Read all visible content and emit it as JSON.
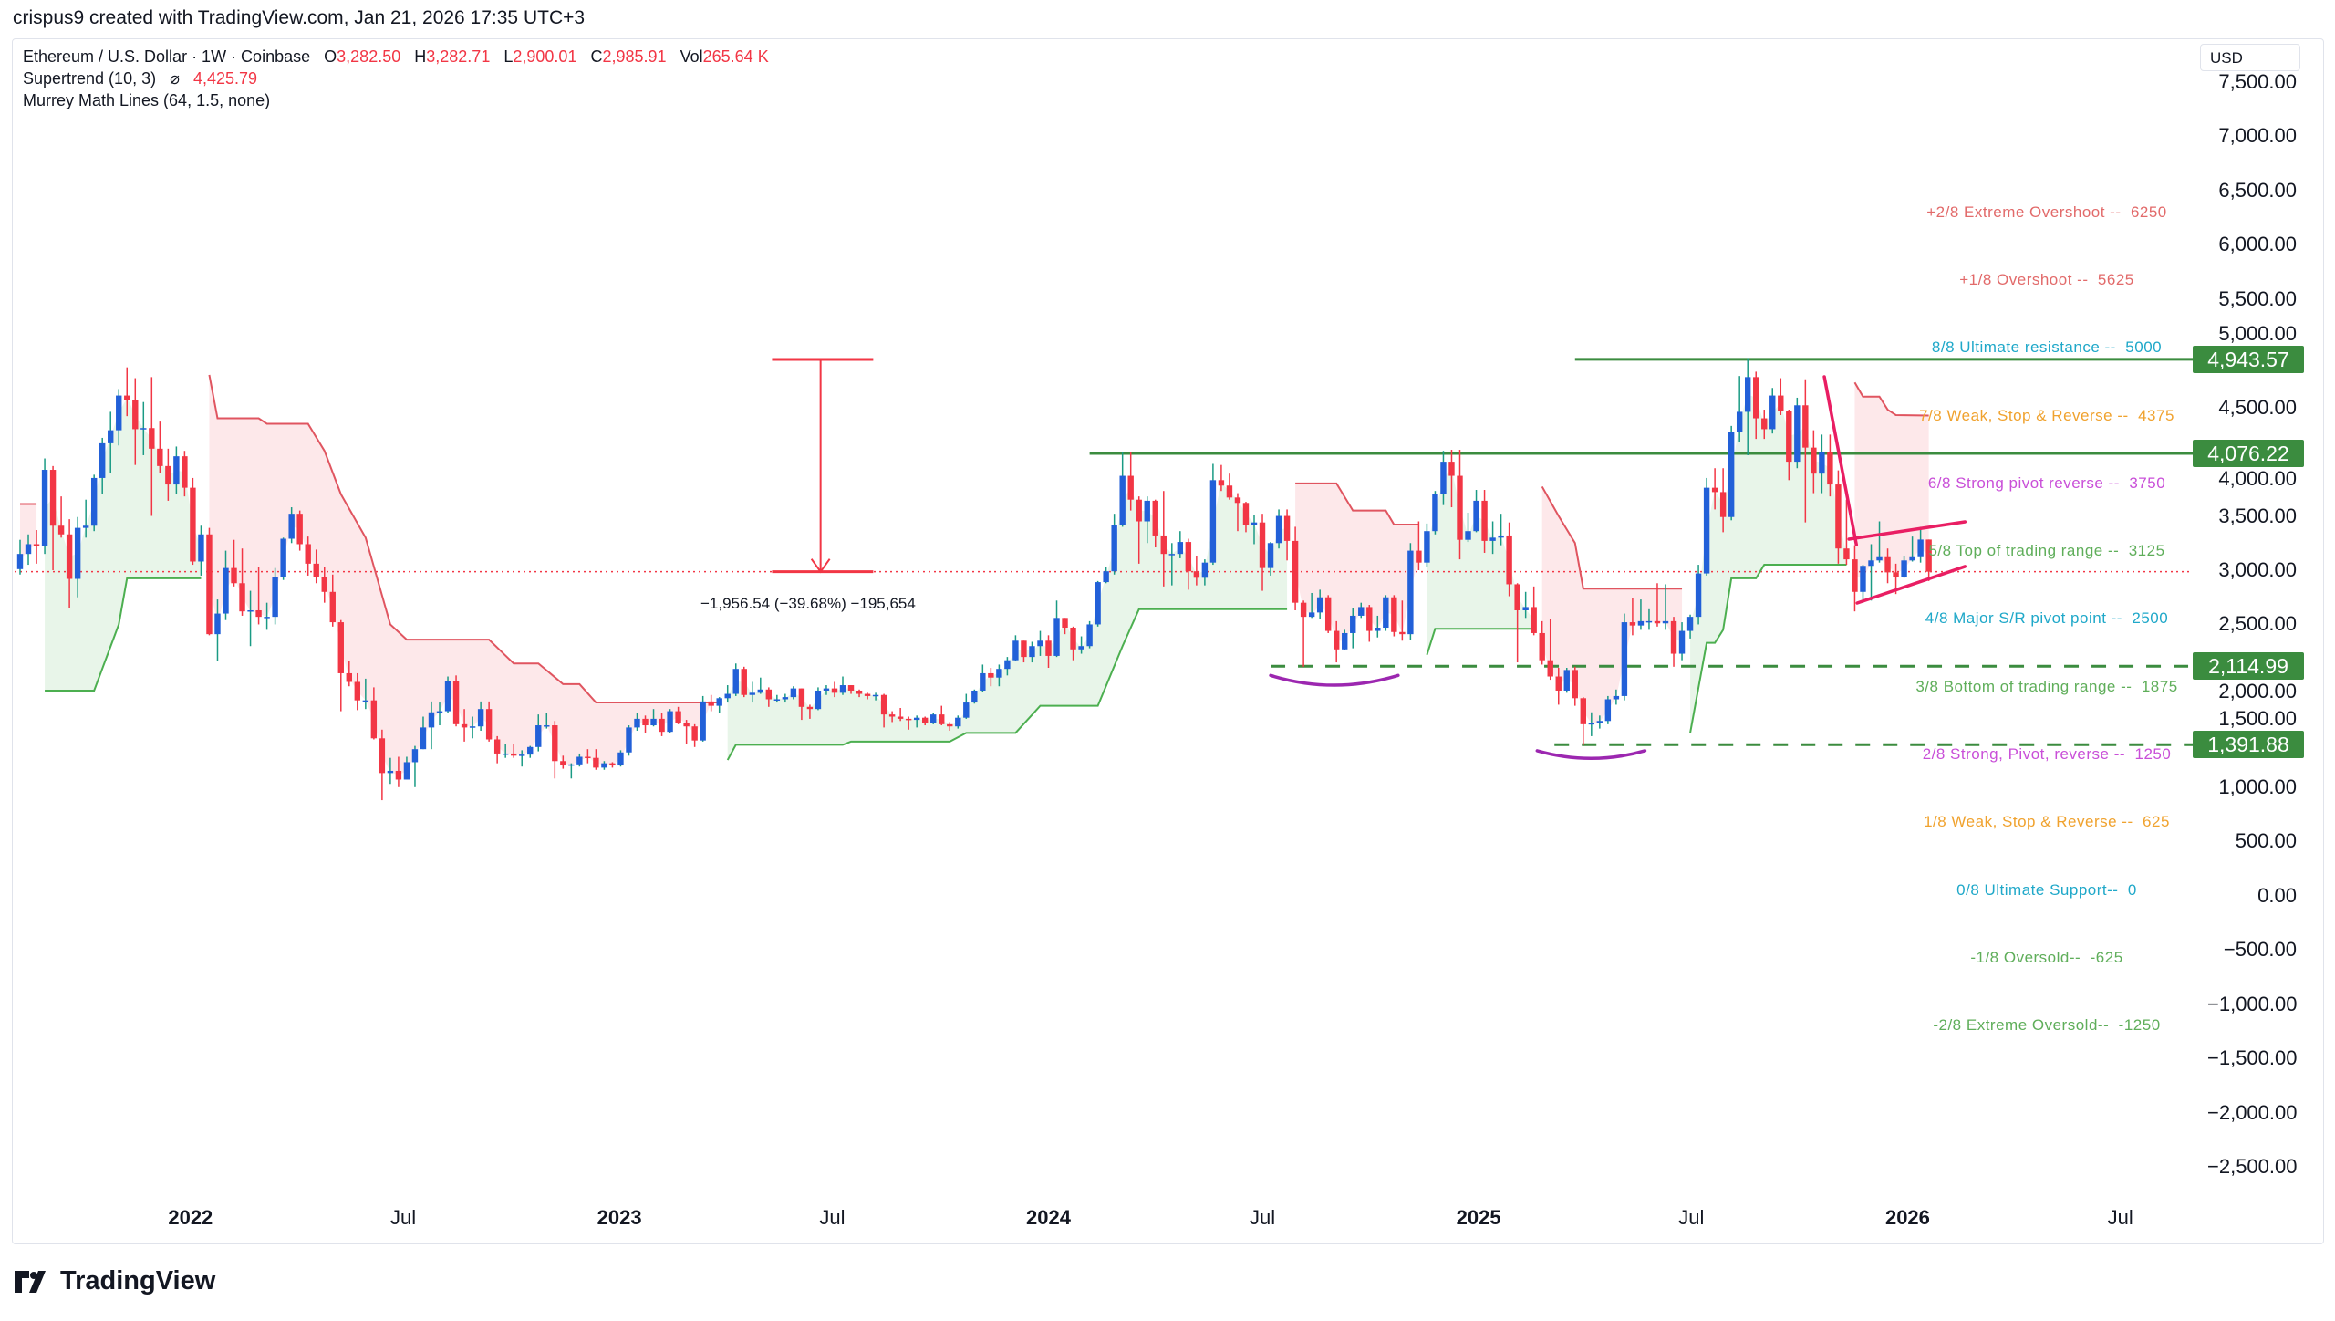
{
  "attribution": "crispus9 created with TradingView.com, Jan 21, 2026 17:35 UTC+3",
  "legend": {
    "symbol": "Ethereum / U.S. Dollar · 1W · Coinbase",
    "o_label": "O",
    "o_value": "3,282.50",
    "h_label": "H",
    "h_value": "3,282.71",
    "l_label": "L",
    "l_value": "2,900.01",
    "c_label": "C",
    "c_value": "2,985.91",
    "vol_label": "Vol",
    "vol_value": "265.64 K",
    "supertrend": "Supertrend (10, 3)",
    "supertrend_symbol": "⌀",
    "supertrend_value": "4,425.79",
    "murrey": "Murrey Math Lines (64, 1.5, none)"
  },
  "currency": "USD",
  "brand": "TradingView",
  "colors": {
    "up_body": "#2260d8",
    "up_wick": "#1a9a84",
    "down": "#f23645",
    "supertrend_up": "#4caf50",
    "supertrend_down": "#e05560",
    "up_fill": "#e8f5e9",
    "down_fill": "#fde8ea",
    "level_line": "#3b8c3f",
    "trendline": "#e91e63",
    "arc": "#9c27b0",
    "measure": "#f23645"
  },
  "chart_data": {
    "type": "candlestick",
    "interval": "1W",
    "first_bar_date": "2021-08-09",
    "first_open": 3010,
    "close": [
      3150,
      3240,
      3225,
      3925,
      3410,
      3330,
      2920,
      3390,
      3410,
      3850,
      4170,
      4290,
      4610,
      4570,
      4300,
      4310,
      4120,
      3960,
      3790,
      4050,
      3760,
      3080,
      3330,
      2410,
      2600,
      3020,
      2880,
      2620,
      2630,
      2570,
      2570,
      2940,
      3290,
      3520,
      3240,
      3060,
      2940,
      2800,
      2520,
      2050,
      1970,
      1800,
      1800,
      1450,
      1130,
      1150,
      1070,
      1230,
      1350,
      1550,
      1690,
      1700,
      1980,
      1580,
      1550,
      1560,
      1720,
      1440,
      1310,
      1310,
      1290,
      1300,
      1370,
      1570,
      1570,
      1240,
      1200,
      1210,
      1280,
      1270,
      1180,
      1220,
      1200,
      1320,
      1550,
      1630,
      1570,
      1630,
      1510,
      1700,
      1590,
      1560,
      1430,
      1790,
      1750,
      1820,
      1860,
      2090,
      1850,
      1870,
      1900,
      1810,
      1810,
      1830,
      1910,
      1740,
      1720,
      1890,
      1910,
      1870,
      1940,
      1890,
      1860,
      1840,
      1850,
      1670,
      1650,
      1630,
      1620,
      1640,
      1590,
      1670,
      1580,
      1560,
      1640,
      1780,
      1890,
      2050,
      2010,
      2090,
      2170,
      2350,
      2200,
      2300,
      2350,
      2210,
      2560,
      2470,
      2270,
      2300,
      2500,
      2890,
      2990,
      3420,
      3870,
      3650,
      3450,
      3640,
      3320,
      3150,
      3150,
      3260,
      2990,
      2930,
      3070,
      3830,
      3780,
      3670,
      3620,
      3420,
      3440,
      3020,
      3250,
      3500,
      3270,
      2700,
      2570,
      2610,
      2750,
      2440,
      2270,
      2420,
      2580,
      2660,
      2440,
      2470,
      2750,
      2430,
      2410,
      3180,
      3070,
      3360,
      3700,
      4000,
      3870,
      3280,
      3360,
      3640,
      3270,
      3300,
      3320,
      2870,
      2630,
      2660,
      2420,
      2170,
      2020,
      1890,
      2080,
      1820,
      1580,
      1590,
      1610,
      1810,
      1840,
      2520,
      2490,
      2530,
      2530,
      2510,
      2530,
      2230,
      2440,
      2570,
      2970,
      3760,
      3720,
      3490,
      4270,
      4460,
      4780,
      4400,
      4300,
      4610,
      4470,
      4000,
      4520,
      4130,
      3890,
      4090,
      3790,
      3200,
      3100,
      2800,
      3040,
      3090,
      3120,
      2980,
      2940,
      3090,
      3120,
      3282.5,
      2985.91
    ],
    "high": [
      3280,
      3330,
      3370,
      4030,
      3960,
      3680,
      3470,
      3490,
      3650,
      3880,
      4220,
      4460,
      4670,
      4870,
      4770,
      4550,
      4780,
      4370,
      4120,
      4140,
      4100,
      3850,
      3410,
      3390,
      2730,
      3180,
      3280,
      3200,
      2810,
      3030,
      2700,
      3020,
      3300,
      3580,
      3550,
      3310,
      3190,
      3030,
      2960,
      2540,
      2160,
      2050,
      2000,
      1920,
      1530,
      1270,
      1280,
      1280,
      1380,
      1650,
      1790,
      1780,
      2020,
      2030,
      1720,
      1650,
      1790,
      1790,
      1470,
      1400,
      1400,
      1340,
      1380,
      1670,
      1680,
      1610,
      1290,
      1220,
      1310,
      1350,
      1350,
      1240,
      1230,
      1340,
      1570,
      1680,
      1660,
      1720,
      1680,
      1720,
      1740,
      1620,
      1580,
      1840,
      1850,
      1830,
      1940,
      2140,
      2110,
      1970,
      2010,
      1920,
      1850,
      1860,
      1930,
      1910,
      1760,
      1920,
      1940,
      1970,
      2020,
      1940,
      1900,
      1870,
      1870,
      1860,
      1700,
      1730,
      1650,
      1660,
      1650,
      1680,
      1750,
      1600,
      1660,
      1860,
      1900,
      2130,
      2100,
      2130,
      2200,
      2400,
      2350,
      2340,
      2440,
      2400,
      2720,
      2560,
      2480,
      2390,
      2530,
      2900,
      3030,
      3520,
      4090,
      4090,
      3680,
      3680,
      3650,
      3730,
      3250,
      3360,
      3290,
      3130,
      3100,
      3980,
      3970,
      3890,
      3710,
      3630,
      3510,
      3520,
      3260,
      3560,
      3560,
      3400,
      2720,
      2790,
      2820,
      2770,
      2530,
      2450,
      2650,
      2700,
      2680,
      2580,
      2770,
      2770,
      2720,
      3250,
      3450,
      3430,
      3730,
      4100,
      4110,
      4110,
      3530,
      3740,
      3740,
      3450,
      3520,
      3440,
      2880,
      2800,
      2850,
      2530,
      2550,
      2100,
      2100,
      2110,
      1830,
      1690,
      1660,
      1840,
      1900,
      2600,
      2740,
      2730,
      2640,
      2880,
      2870,
      2570,
      2520,
      2590,
      3050,
      3850,
      3940,
      3940,
      4330,
      4790,
      4955,
      4830,
      4480,
      4680,
      4770,
      4480,
      4590,
      4760,
      4290,
      4250,
      4250,
      3920,
      3650,
      3230,
      3050,
      3240,
      3450,
      3200,
      3060,
      3130,
      3310,
      3400,
      3282.71
    ],
    "low": [
      2960,
      3050,
      3060,
      3150,
      3000,
      3300,
      2650,
      2750,
      3300,
      3360,
      3700,
      3900,
      4150,
      4420,
      3970,
      4060,
      3500,
      3900,
      3640,
      3700,
      3680,
      3050,
      2950,
      2400,
      2160,
      2540,
      2850,
      2580,
      2300,
      2500,
      2450,
      2500,
      2910,
      3250,
      3180,
      2950,
      2880,
      2700,
      2480,
      1700,
      1930,
      1710,
      1720,
      1440,
      880,
      1030,
      1000,
      1080,
      1000,
      1350,
      1350,
      1570,
      1680,
      1560,
      1420,
      1450,
      1520,
      1420,
      1220,
      1270,
      1270,
      1190,
      1270,
      1330,
      1540,
      1080,
      1170,
      1080,
      1190,
      1220,
      1160,
      1160,
      1180,
      1190,
      1290,
      1520,
      1500,
      1560,
      1470,
      1500,
      1580,
      1400,
      1370,
      1420,
      1700,
      1680,
      1780,
      1840,
      1830,
      1780,
      1860,
      1740,
      1780,
      1780,
      1810,
      1620,
      1630,
      1710,
      1850,
      1830,
      1850,
      1860,
      1830,
      1810,
      1800,
      1550,
      1600,
      1610,
      1530,
      1550,
      1570,
      1580,
      1570,
      1520,
      1540,
      1630,
      1770,
      1880,
      1930,
      1930,
      2030,
      2160,
      2150,
      2150,
      2210,
      2100,
      2200,
      2410,
      2170,
      2230,
      2280,
      2480,
      2880,
      2960,
      3400,
      3550,
      3060,
      3250,
      3210,
      2850,
      2860,
      3110,
      2820,
      2860,
      2860,
      3050,
      3730,
      3650,
      3360,
      3350,
      3240,
      2810,
      2950,
      3200,
      3090,
      2630,
      2110,
      2560,
      2550,
      2420,
      2150,
      2260,
      2280,
      2560,
      2340,
      2380,
      2440,
      2390,
      2350,
      2360,
      3000,
      3030,
      3330,
      3600,
      3580,
      3100,
      3260,
      3350,
      3160,
      3150,
      3230,
      2760,
      2150,
      2560,
      2400,
      2130,
      1990,
      1760,
      1870,
      1750,
      1385,
      1470,
      1540,
      1580,
      1760,
      1800,
      2400,
      2450,
      2450,
      2480,
      2450,
      2110,
      2170,
      2370,
      2500,
      2950,
      3560,
      3350,
      3460,
      4180,
      4060,
      4210,
      4210,
      4260,
      4430,
      3830,
      3940,
      3440,
      3710,
      3710,
      3680,
      3060,
      3050,
      2620,
      2700,
      2720,
      3070,
      2880,
      2780,
      2930,
      3080,
      3070,
      2900.01
    ],
    "last_price": 2985.91,
    "supertrend": [
      {
        "trend": "down",
        "points": [
          [
            0,
            3610
          ],
          [
            2,
            3610
          ]
        ]
      },
      {
        "trend": "up",
        "points": [
          [
            3,
            1890
          ],
          [
            9,
            1890
          ],
          [
            12,
            2500
          ],
          [
            13,
            2925
          ],
          [
            22,
            2925
          ]
        ]
      },
      {
        "trend": "down",
        "points": [
          [
            23,
            4800
          ],
          [
            24,
            4400
          ],
          [
            29,
            4400
          ],
          [
            30,
            4350
          ],
          [
            35,
            4350
          ],
          [
            37,
            4100
          ],
          [
            39,
            3700
          ],
          [
            42,
            3300
          ],
          [
            45,
            2500
          ],
          [
            47,
            2360
          ],
          [
            57,
            2360
          ],
          [
            60,
            2140
          ],
          [
            63,
            2140
          ],
          [
            66,
            1950
          ],
          [
            68,
            1950
          ],
          [
            70,
            1780
          ],
          [
            85,
            1780
          ]
        ]
      },
      {
        "trend": "up",
        "points": [
          [
            86,
            1250
          ],
          [
            87,
            1390
          ],
          [
            100,
            1390
          ],
          [
            101,
            1420
          ],
          [
            113,
            1420
          ],
          [
            115,
            1500
          ],
          [
            121,
            1500
          ],
          [
            124,
            1750
          ],
          [
            131,
            1750
          ],
          [
            134,
            2300
          ],
          [
            136,
            2640
          ],
          [
            154,
            2640
          ]
        ]
      },
      {
        "trend": "down",
        "points": [
          [
            155,
            3800
          ],
          [
            160,
            3800
          ],
          [
            162,
            3550
          ],
          [
            166,
            3550
          ],
          [
            167,
            3420
          ],
          [
            170,
            3420
          ]
        ]
      },
      {
        "trend": "up",
        "points": [
          [
            171,
            2220
          ],
          [
            172,
            2460
          ],
          [
            184,
            2460
          ]
        ]
      },
      {
        "trend": "down",
        "points": [
          [
            185,
            3770
          ],
          [
            187,
            3500
          ],
          [
            189,
            3250
          ],
          [
            190,
            2830
          ],
          [
            202,
            2830
          ]
        ]
      },
      {
        "trend": "up",
        "points": [
          [
            203,
            1500
          ],
          [
            205,
            2330
          ],
          [
            206,
            2330
          ],
          [
            207,
            2450
          ],
          [
            208,
            2925
          ],
          [
            211,
            2925
          ],
          [
            212,
            3050
          ],
          [
            222,
            3050
          ]
        ]
      },
      {
        "trend": "down",
        "points": [
          [
            223,
            4730
          ],
          [
            224,
            4600
          ],
          [
            226,
            4600
          ],
          [
            227,
            4480
          ],
          [
            228,
            4430
          ],
          [
            232,
            4425.79
          ]
        ]
      }
    ],
    "murrey_levels": [
      {
        "label": "+2/8 Extreme Overshoot --  6250",
        "value": 6250,
        "color": "#e26a6a"
      },
      {
        "label": "+1/8 Overshoot --  5625",
        "value": 5625,
        "color": "#e26a6a"
      },
      {
        "label": "8/8 Ultimate resistance --  5000",
        "value": 5000,
        "color": "#1fa8c9"
      },
      {
        "label": "7/8 Weak, Stop & Reverse --  4375",
        "value": 4375,
        "color": "#f0a22e"
      },
      {
        "label": "6/8 Strong pivot reverse --  3750",
        "value": 3750,
        "color": "#c94fd8"
      },
      {
        "label": "5/8 Top of trading range --  3125",
        "value": 3125,
        "color": "#5fae5a"
      },
      {
        "label": "4/8 Major S/R pivot point --  2500",
        "value": 2500,
        "color": "#1fa8c9"
      },
      {
        "label": "3/8 Bottom of trading range --  1875",
        "value": 1875,
        "color": "#5fae5a"
      },
      {
        "label": "2/8 Strong, Pivot, reverse --  1250",
        "value": 1250,
        "color": "#c94fd8"
      },
      {
        "label": "1/8 Weak, Stop & Reverse --  625",
        "value": 625,
        "color": "#f0a22e"
      },
      {
        "label": "0/8 Ultimate Support--  0",
        "value": 0,
        "color": "#1fa8c9"
      },
      {
        "label": "-1/8 Oversold--  -625",
        "value": -625,
        "color": "#5fae5a"
      },
      {
        "label": "-2/8 Extreme Oversold--  -1250",
        "value": -1250,
        "color": "#5fae5a"
      }
    ],
    "horizontal_levels": [
      {
        "label": "4,943.57",
        "value": 4943.57,
        "style": "solid",
        "from_bar": 189
      },
      {
        "label": "4,076.22",
        "value": 4076.22,
        "style": "solid",
        "from_bar": 130
      },
      {
        "label": "2,114.99",
        "value": 2114.99,
        "style": "dashed",
        "from_bar": 152
      },
      {
        "label": "1,391.88",
        "value": 1391.88,
        "style": "dashed",
        "from_bar": 186.5
      }
    ],
    "trendlines": [
      {
        "name": "descending-trendline",
        "from": [
          219.3,
          4783
        ],
        "to": [
          223.2,
          3235
        ]
      },
      {
        "name": "triangle-upper-line",
        "from": [
          222.3,
          3286
        ],
        "to": [
          236.4,
          3446
        ]
      },
      {
        "name": "triangle-lower-line",
        "from": [
          223.3,
          2697
        ],
        "to": [
          236.4,
          3034
        ]
      }
    ],
    "arcs": [
      {
        "from_bar": 152,
        "to_bar": 167.5,
        "edge_price": 2030,
        "bottom_price": 1940
      },
      {
        "from_bar": 184.4,
        "to_bar": 197.5,
        "edge_price": 1335,
        "bottom_price": 1265
      }
    ],
    "measure": {
      "bar": 97.3,
      "from_bar": 91.4,
      "to_bar": 103.7,
      "top_price": 4942.45,
      "bottom_price": 2985.91,
      "label": "−1,956.54 (−39.68%) −195,654"
    },
    "ylim": [
      -2750,
      7700
    ],
    "y_ticks": [
      "7,500.00",
      "7,000.00",
      "6,500.00",
      "6,000.00",
      "5,500.00",
      "5,000.00",
      "4,500.00",
      "4,000.00",
      "3,500.00",
      "3,000.00",
      "2,500.00",
      "2,000.00",
      "1,500.00",
      "1,000.00",
      "500.00",
      "0.00",
      "−500.00",
      "−1,000.00",
      "−1,500.00",
      "−2,000.00",
      "−2,500.00"
    ],
    "y_tick_values": [
      7500,
      7000,
      6500,
      6000,
      5500,
      5000,
      4500,
      4000,
      3500,
      3000,
      2500,
      2000,
      1500,
      1000,
      500,
      0,
      -500,
      -1000,
      -1500,
      -2000,
      -2500
    ],
    "x_ticks": [
      {
        "label": "2022",
        "date": "2022-01-01",
        "year": true
      },
      {
        "label": "Jul",
        "date": "2022-07-01",
        "year": false
      },
      {
        "label": "2023",
        "date": "2023-01-01",
        "year": true
      },
      {
        "label": "Jul",
        "date": "2023-07-01",
        "year": false
      },
      {
        "label": "2024",
        "date": "2024-01-01",
        "year": true
      },
      {
        "label": "Jul",
        "date": "2024-07-01",
        "year": false
      },
      {
        "label": "2025",
        "date": "2025-01-01",
        "year": true
      },
      {
        "label": "Jul",
        "date": "2025-07-01",
        "year": false
      },
      {
        "label": "2026",
        "date": "2026-01-01",
        "year": true
      },
      {
        "label": "Jul",
        "date": "2026-07-01",
        "year": false
      }
    ]
  }
}
